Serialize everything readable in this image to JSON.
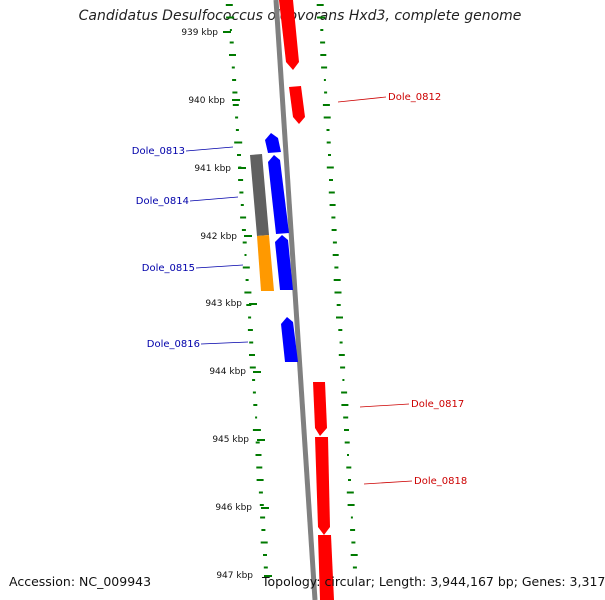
{
  "title": "Candidatus Desulfococcus oleovorans Hxd3, complete genome",
  "footer": {
    "accession": "Accession: NC_009943",
    "summary": "Topology: circular; Length: 3,944,167 bp; Genes: 3,317"
  },
  "colors": {
    "backbone": "#808080",
    "forward_strand": "#ff0000",
    "reverse_strand": "#0000ff",
    "gc_track": "#007a00",
    "cog_gray": "#606060",
    "cog_orange": "#ff9900",
    "forward_label": "#cc0000",
    "reverse_label": "#0000aa",
    "tick_label": "#111111"
  },
  "scale_ticks": [
    "939 kbp",
    "940 kbp",
    "941 kbp",
    "942 kbp",
    "943 kbp",
    "944 kbp",
    "945 kbp",
    "946 kbp",
    "947 kbp"
  ],
  "gene_labels": {
    "left": [
      "Dole_0813",
      "Dole_0814",
      "Dole_0815",
      "Dole_0816"
    ],
    "right": [
      "Dole_0812",
      "Dole_0817",
      "Dole_0818"
    ]
  }
}
